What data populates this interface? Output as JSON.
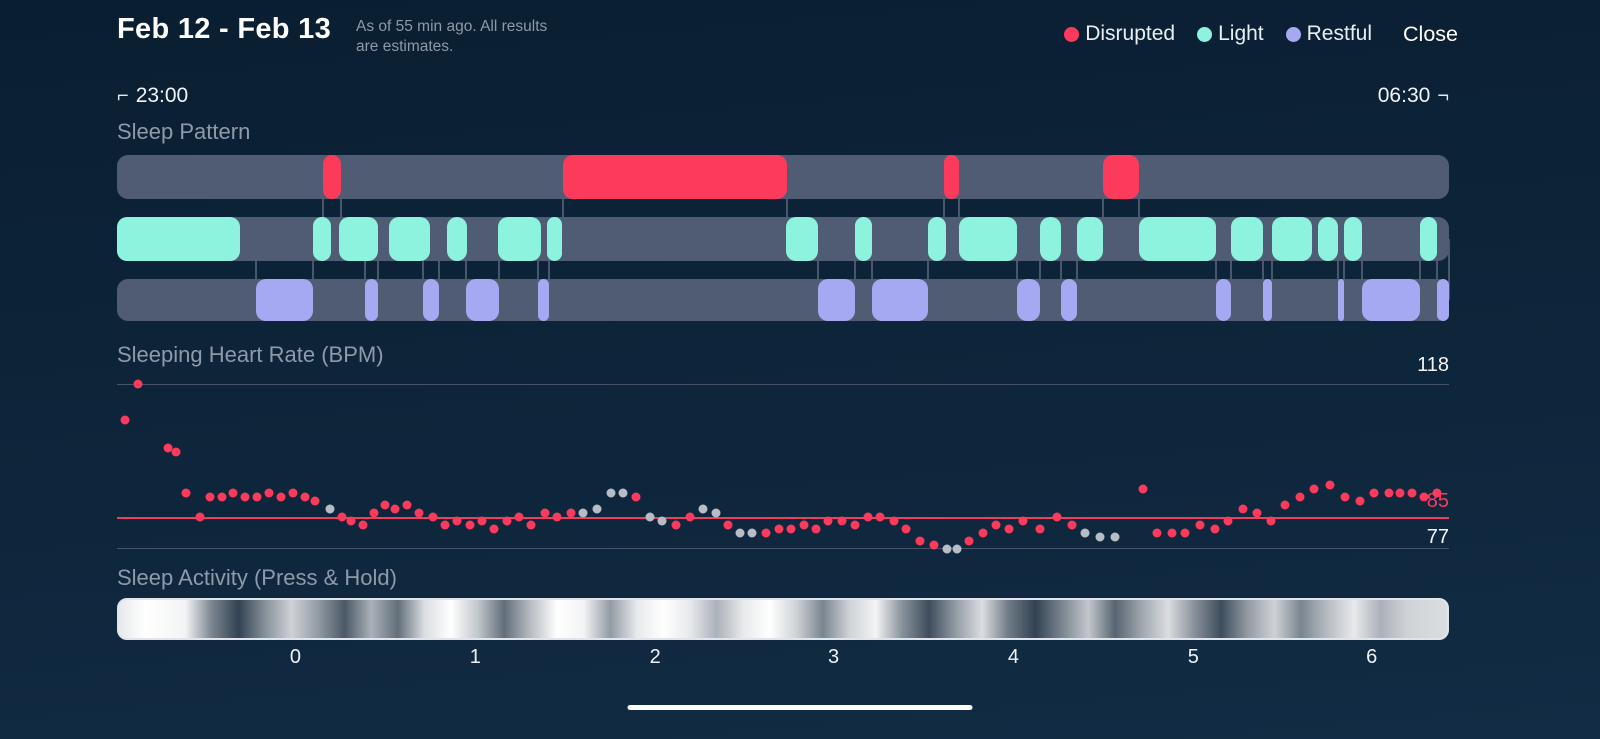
{
  "header": {
    "date_range": "Feb 12 - Feb 13",
    "as_of_line1": "As of 55 min ago. All results",
    "as_of_line2": "are estimates.",
    "close_label": "Close",
    "legend": [
      {
        "label": "Disrupted",
        "color": "#fb3a5c"
      },
      {
        "label": "Light",
        "color": "#8df2de"
      },
      {
        "label": "Restful",
        "color": "#a5a9f2"
      }
    ]
  },
  "timeline": {
    "start_label": "23:00",
    "end_label": "06:30",
    "left_bracket": "⌐",
    "right_bracket": "¬"
  },
  "sections": {
    "sleep_pattern": "Sleep Pattern",
    "heart_rate": "Sleeping Heart Rate (BPM)",
    "activity": "Sleep Activity (Press & Hold)"
  },
  "heart_rate_labels": {
    "max": "118",
    "avg": "85",
    "min": "77"
  },
  "colors": {
    "disrupted": "#fb3a5c",
    "light": "#8df2de",
    "restful": "#a5a9f2",
    "track_gray": "#4f5c73",
    "gray_dot": "#b6bdc6",
    "background": "#0d2439"
  },
  "chart_data": [
    {
      "type": "timeline",
      "title": "Sleep Pattern",
      "x_range_labels": [
        "23:00",
        "06:30"
      ],
      "tracks": [
        {
          "name": "disrupted",
          "color": "#fb3a5c",
          "segments": [
            [
              0.155,
              0.168
            ],
            [
              0.335,
              0.503
            ],
            [
              0.621,
              0.632
            ],
            [
              0.74,
              0.767
            ]
          ]
        },
        {
          "name": "light",
          "color": "#8df2de",
          "segments": [
            [
              0.0,
              0.092
            ],
            [
              0.147,
              0.161
            ],
            [
              0.167,
              0.196
            ],
            [
              0.204,
              0.235
            ],
            [
              0.248,
              0.263
            ],
            [
              0.286,
              0.318
            ],
            [
              0.323,
              0.334
            ],
            [
              0.502,
              0.526
            ],
            [
              0.554,
              0.567
            ],
            [
              0.609,
              0.622
            ],
            [
              0.632,
              0.676
            ],
            [
              0.693,
              0.709
            ],
            [
              0.721,
              0.74
            ],
            [
              0.767,
              0.825
            ],
            [
              0.836,
              0.86
            ],
            [
              0.867,
              0.897
            ],
            [
              0.902,
              0.917
            ],
            [
              0.921,
              0.935
            ],
            [
              0.978,
              0.991
            ]
          ]
        },
        {
          "name": "restful",
          "color": "#a5a9f2",
          "segments": [
            [
              0.104,
              0.147
            ],
            [
              0.186,
              0.196
            ],
            [
              0.23,
              0.242
            ],
            [
              0.262,
              0.287
            ],
            [
              0.316,
              0.324
            ],
            [
              0.526,
              0.554
            ],
            [
              0.567,
              0.609
            ],
            [
              0.676,
              0.693
            ],
            [
              0.709,
              0.721
            ],
            [
              0.825,
              0.836
            ],
            [
              0.86,
              0.867
            ],
            [
              0.917,
              0.921
            ],
            [
              0.935,
              0.978
            ],
            [
              0.991,
              1.0
            ]
          ]
        }
      ]
    },
    {
      "type": "scatter",
      "title": "Sleeping Heart Rate (BPM)",
      "ylim": [
        77,
        118
      ],
      "ref_lines": [
        118,
        85,
        77
      ],
      "point_colors": {
        "0": "#fb3a5c",
        "1": "#b6bdc6"
      },
      "points": [
        [
          0.006,
          109,
          0
        ],
        [
          0.016,
          118,
          0
        ],
        [
          0.038,
          102,
          0
        ],
        [
          0.044,
          101,
          0
        ],
        [
          0.052,
          91,
          0
        ],
        [
          0.062,
          85,
          0
        ],
        [
          0.07,
          90,
          0
        ],
        [
          0.079,
          90,
          0
        ],
        [
          0.087,
          91,
          0
        ],
        [
          0.096,
          90,
          0
        ],
        [
          0.105,
          90,
          0
        ],
        [
          0.114,
          91,
          0
        ],
        [
          0.123,
          90,
          0
        ],
        [
          0.132,
          91,
          0
        ],
        [
          0.141,
          90,
          0
        ],
        [
          0.149,
          89,
          0
        ],
        [
          0.16,
          87,
          1
        ],
        [
          0.169,
          85,
          0
        ],
        [
          0.176,
          84,
          0
        ],
        [
          0.185,
          83,
          0
        ],
        [
          0.193,
          86,
          0
        ],
        [
          0.201,
          88,
          0
        ],
        [
          0.209,
          87,
          0
        ],
        [
          0.218,
          88,
          0
        ],
        [
          0.227,
          86,
          0
        ],
        [
          0.237,
          85,
          0
        ],
        [
          0.246,
          83,
          0
        ],
        [
          0.255,
          84,
          0
        ],
        [
          0.265,
          83,
          0
        ],
        [
          0.274,
          84,
          0
        ],
        [
          0.283,
          82,
          0
        ],
        [
          0.293,
          84,
          0
        ],
        [
          0.302,
          85,
          0
        ],
        [
          0.311,
          83,
          0
        ],
        [
          0.321,
          86,
          0
        ],
        [
          0.33,
          85,
          0
        ],
        [
          0.341,
          86,
          0
        ],
        [
          0.35,
          86,
          1
        ],
        [
          0.36,
          87,
          1
        ],
        [
          0.371,
          91,
          1
        ],
        [
          0.38,
          91,
          1
        ],
        [
          0.39,
          90,
          0
        ],
        [
          0.4,
          85,
          1
        ],
        [
          0.409,
          84,
          1
        ],
        [
          0.42,
          83,
          0
        ],
        [
          0.43,
          85,
          0
        ],
        [
          0.44,
          87,
          1
        ],
        [
          0.45,
          86,
          1
        ],
        [
          0.459,
          83,
          0
        ],
        [
          0.468,
          81,
          1
        ],
        [
          0.477,
          81,
          1
        ],
        [
          0.487,
          81,
          0
        ],
        [
          0.497,
          82,
          0
        ],
        [
          0.506,
          82,
          0
        ],
        [
          0.516,
          83,
          0
        ],
        [
          0.525,
          82,
          0
        ],
        [
          0.534,
          84,
          0
        ],
        [
          0.544,
          84,
          0
        ],
        [
          0.554,
          83,
          0
        ],
        [
          0.564,
          85,
          0
        ],
        [
          0.573,
          85,
          0
        ],
        [
          0.583,
          84,
          0
        ],
        [
          0.592,
          82,
          0
        ],
        [
          0.603,
          79,
          0
        ],
        [
          0.613,
          78,
          0
        ],
        [
          0.623,
          77,
          1
        ],
        [
          0.631,
          77,
          1
        ],
        [
          0.64,
          79,
          0
        ],
        [
          0.65,
          81,
          0
        ],
        [
          0.66,
          83,
          0
        ],
        [
          0.67,
          82,
          0
        ],
        [
          0.68,
          84,
          0
        ],
        [
          0.693,
          82,
          0
        ],
        [
          0.706,
          85,
          0
        ],
        [
          0.717,
          83,
          0
        ],
        [
          0.727,
          81,
          1
        ],
        [
          0.738,
          80,
          1
        ],
        [
          0.749,
          80,
          1
        ],
        [
          0.77,
          92,
          0
        ],
        [
          0.781,
          81,
          0
        ],
        [
          0.792,
          81,
          0
        ],
        [
          0.802,
          81,
          0
        ],
        [
          0.813,
          83,
          0
        ],
        [
          0.824,
          82,
          0
        ],
        [
          0.834,
          84,
          0
        ],
        [
          0.845,
          87,
          0
        ],
        [
          0.856,
          86,
          0
        ],
        [
          0.866,
          84,
          0
        ],
        [
          0.877,
          88,
          0
        ],
        [
          0.888,
          90,
          0
        ],
        [
          0.899,
          92,
          0
        ],
        [
          0.911,
          93,
          0
        ],
        [
          0.922,
          90,
          0
        ],
        [
          0.933,
          89,
          0
        ],
        [
          0.944,
          91,
          0
        ],
        [
          0.955,
          91,
          0
        ],
        [
          0.963,
          91,
          0
        ],
        [
          0.972,
          91,
          0
        ],
        [
          0.981,
          90,
          0
        ],
        [
          0.991,
          91,
          0
        ]
      ]
    },
    {
      "type": "heatmap",
      "title": "Sleep Activity (Press & Hold)",
      "x_ticks": [
        {
          "label": "0",
          "t": 0.134
        },
        {
          "label": "1",
          "t": 0.269
        },
        {
          "label": "2",
          "t": 0.404
        },
        {
          "label": "3",
          "t": 0.538
        },
        {
          "label": "4",
          "t": 0.673
        },
        {
          "label": "5",
          "t": 0.808
        },
        {
          "label": "6",
          "t": 0.942
        }
      ],
      "intensity": [
        [
          0,
          0.9
        ],
        [
          0.02,
          1
        ],
        [
          0.05,
          0.95
        ],
        [
          0.07,
          0.45
        ],
        [
          0.09,
          0.15
        ],
        [
          0.11,
          0.5
        ],
        [
          0.13,
          0.8
        ],
        [
          0.15,
          0.55
        ],
        [
          0.17,
          0.25
        ],
        [
          0.19,
          0.65
        ],
        [
          0.21,
          0.35
        ],
        [
          0.23,
          0.85
        ],
        [
          0.25,
          1
        ],
        [
          0.27,
          0.75
        ],
        [
          0.29,
          0.35
        ],
        [
          0.31,
          0.7
        ],
        [
          0.33,
          1
        ],
        [
          0.35,
          0.95
        ],
        [
          0.37,
          0.55
        ],
        [
          0.39,
          0.9
        ],
        [
          0.41,
          1
        ],
        [
          0.43,
          0.9
        ],
        [
          0.45,
          0.65
        ],
        [
          0.47,
          0.9
        ],
        [
          0.49,
          1
        ],
        [
          0.51,
          0.8
        ],
        [
          0.53,
          0.45
        ],
        [
          0.55,
          0.8
        ],
        [
          0.57,
          0.95
        ],
        [
          0.59,
          0.5
        ],
        [
          0.61,
          0.2
        ],
        [
          0.63,
          0.55
        ],
        [
          0.65,
          0.85
        ],
        [
          0.67,
          0.4
        ],
        [
          0.69,
          0.15
        ],
        [
          0.71,
          0.45
        ],
        [
          0.73,
          0.75
        ],
        [
          0.75,
          0.3
        ],
        [
          0.77,
          0.6
        ],
        [
          0.79,
          0.85
        ],
        [
          0.81,
          0.5
        ],
        [
          0.83,
          0.2
        ],
        [
          0.85,
          0.55
        ],
        [
          0.87,
          0.8
        ],
        [
          0.89,
          0.45
        ],
        [
          0.91,
          0.7
        ],
        [
          0.93,
          0.9
        ],
        [
          0.95,
          0.65
        ],
        [
          0.97,
          0.8
        ],
        [
          1,
          0.85
        ]
      ]
    }
  ]
}
